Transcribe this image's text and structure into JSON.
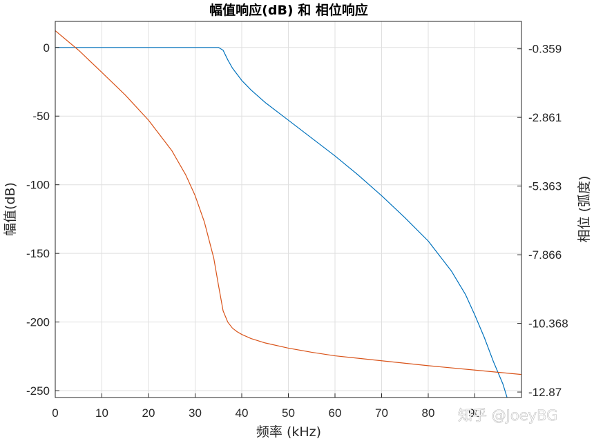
{
  "chart_data": {
    "type": "line",
    "title": "幅值响应(dB) 和 相位响应",
    "xlabel": "频率 (kHz)",
    "ylabel_left": "幅值(dB)",
    "ylabel_right": "相位 (弧度)",
    "xlim": [
      0,
      100
    ],
    "ylim_left": [
      -255,
      19
    ],
    "ylim_right": [
      -13.07,
      0.64
    ],
    "x_ticks": [
      "0",
      "10",
      "20",
      "30",
      "40",
      "50",
      "60",
      "70",
      "80",
      "90"
    ],
    "y_left_ticks": [
      "0",
      "-50",
      "-100",
      "-150",
      "-200",
      "-250"
    ],
    "y_right_ticks": [
      "-0.359",
      "-2.861",
      "-5.363",
      "-7.866",
      "-10.368",
      "-12.87"
    ],
    "grid": true,
    "series": [
      {
        "axis": "left",
        "color": "#0072BD",
        "x": [
          0,
          10,
          20,
          30,
          35,
          36,
          37,
          38,
          40,
          42,
          45,
          50,
          55,
          60,
          65,
          70,
          75,
          80,
          85,
          88,
          90,
          92,
          94,
          96,
          97
        ],
        "y": [
          0,
          0,
          0,
          0,
          0,
          -2,
          -9,
          -15,
          -24,
          -31,
          -40,
          -53,
          -66,
          -79,
          -93,
          -108,
          -124,
          -141,
          -163,
          -180,
          -195,
          -211,
          -229,
          -245,
          -256
        ]
      },
      {
        "axis": "right",
        "color": "#D95319",
        "x": [
          0,
          5,
          10,
          15,
          20,
          25,
          28,
          30,
          32,
          34,
          35,
          36,
          37,
          38,
          39,
          40,
          42,
          45,
          50,
          55,
          60,
          70,
          80,
          90,
          100
        ],
        "y": [
          0.3,
          -0.41,
          -1.22,
          -2.04,
          -2.96,
          -4.07,
          -4.96,
          -5.71,
          -6.68,
          -7.99,
          -8.97,
          -9.91,
          -10.32,
          -10.54,
          -10.67,
          -10.77,
          -10.92,
          -11.08,
          -11.27,
          -11.42,
          -11.55,
          -11.73,
          -11.91,
          -12.07,
          -12.23
        ]
      }
    ]
  },
  "watermark": "知乎 @JoeyBG"
}
